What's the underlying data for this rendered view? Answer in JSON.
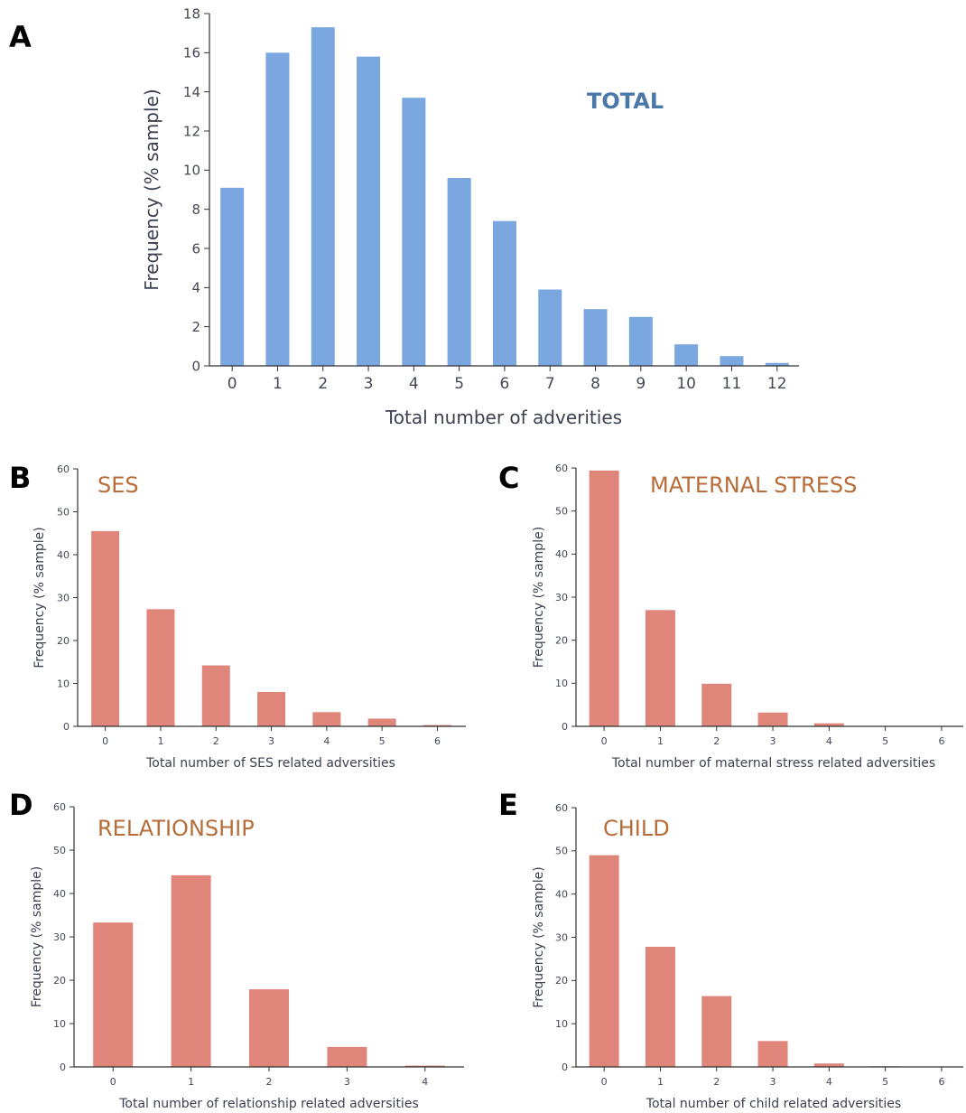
{
  "colors": {
    "total_bar": "#7aa7e0",
    "sub_bar": "#df857a",
    "total_title": "#4a78a8",
    "sub_title": "#b86d38"
  },
  "chart_data": [
    {
      "id": "A",
      "type": "bar",
      "panel_letter": "A",
      "title": "TOTAL",
      "xlabel": "Total number of adverities",
      "ylabel": "Frequency (% sample)",
      "categories": [
        "0",
        "1",
        "2",
        "3",
        "4",
        "5",
        "6",
        "7",
        "8",
        "9",
        "10",
        "11",
        "12"
      ],
      "values": [
        9.1,
        16.0,
        17.3,
        15.8,
        13.7,
        9.6,
        7.4,
        3.9,
        2.9,
        2.5,
        1.1,
        0.5,
        0.15
      ],
      "ylim": [
        0,
        18
      ],
      "yticks": [
        0,
        2,
        4,
        6,
        8,
        10,
        12,
        14,
        16,
        18
      ],
      "grid": false
    },
    {
      "id": "B",
      "type": "bar",
      "panel_letter": "B",
      "title": "SES",
      "xlabel": "Total number of SES related adversities",
      "ylabel": "Frequency (% sample)",
      "categories": [
        "0",
        "1",
        "2",
        "3",
        "4",
        "5",
        "6"
      ],
      "values": [
        45.5,
        27.3,
        14.2,
        8.0,
        3.3,
        1.8,
        0.3
      ],
      "ylim": [
        0,
        60
      ],
      "yticks": [
        0,
        10,
        20,
        30,
        40,
        50,
        60
      ],
      "grid": false
    },
    {
      "id": "C",
      "type": "bar",
      "panel_letter": "C",
      "title": "MATERNAL STRESS",
      "xlabel": "Total number of maternal stress related adversities",
      "ylabel": "Frequency (% sample)",
      "categories": [
        "0",
        "1",
        "2",
        "3",
        "4",
        "5",
        "6"
      ],
      "values": [
        59.4,
        27.0,
        9.9,
        3.2,
        0.7,
        0.05,
        0.03
      ],
      "ylim": [
        0,
        60
      ],
      "yticks": [
        0,
        10,
        20,
        30,
        40,
        50,
        60
      ],
      "grid": false
    },
    {
      "id": "D",
      "type": "bar",
      "panel_letter": "D",
      "title": "RELATIONSHIP",
      "xlabel": "Total number of relationship related adversities",
      "ylabel": "Frequency (% sample)",
      "categories": [
        "0",
        "1",
        "2",
        "3",
        "4"
      ],
      "values": [
        33.3,
        44.2,
        17.9,
        4.6,
        0.3
      ],
      "ylim": [
        0,
        60
      ],
      "yticks": [
        0,
        10,
        20,
        30,
        40,
        50,
        60
      ],
      "grid": false
    },
    {
      "id": "E",
      "type": "bar",
      "panel_letter": "E",
      "title": "CHILD",
      "xlabel": "Total number of child related adversities",
      "ylabel": "Frequency (% sample)",
      "categories": [
        "0",
        "1",
        "2",
        "3",
        "4",
        "5",
        "6"
      ],
      "values": [
        49.0,
        27.8,
        16.4,
        6.0,
        0.8,
        0.15,
        0.05
      ],
      "ylim": [
        0,
        60
      ],
      "yticks": [
        0,
        10,
        20,
        30,
        40,
        50,
        60
      ],
      "grid": false
    }
  ]
}
